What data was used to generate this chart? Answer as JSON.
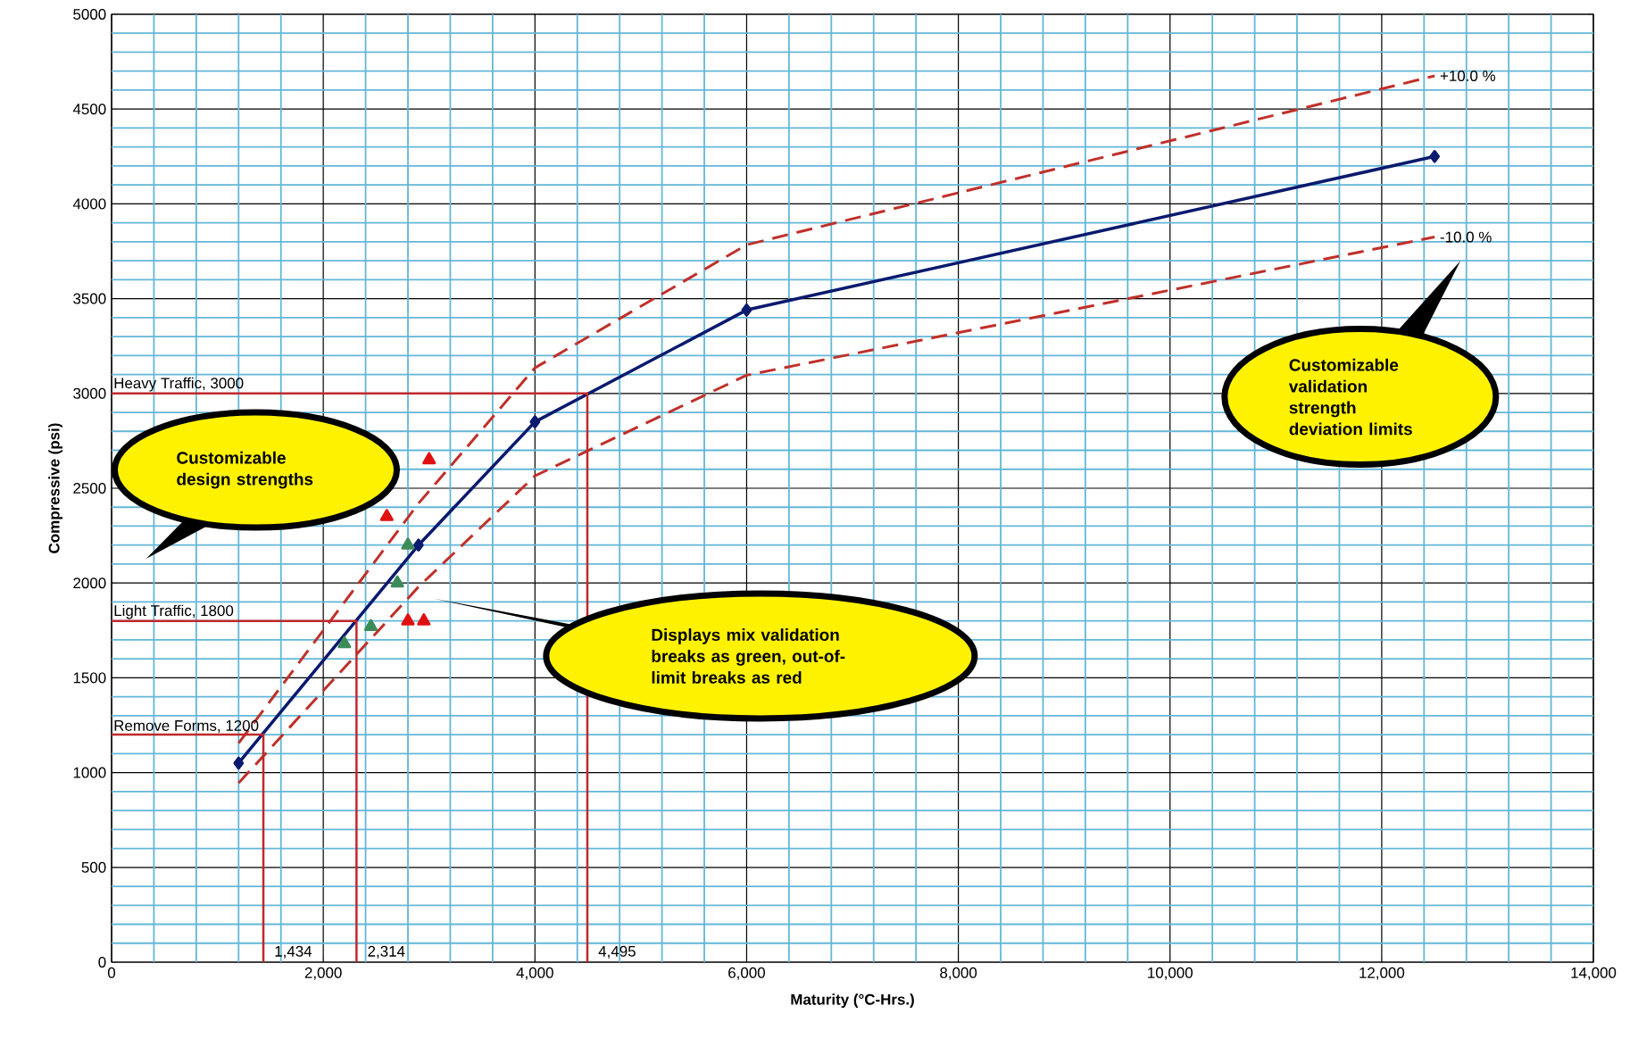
{
  "chart_data": {
    "type": "line",
    "xlabel": "Maturity (°C-Hrs.)",
    "ylabel": "Compressive (psi)",
    "xlim": [
      0,
      14000
    ],
    "ylim": [
      0,
      5000
    ],
    "xticks": [
      0,
      {
        "value": 400,
        "label": null
      },
      {
        "value": 800,
        "label": null
      },
      {
        "value": 1200,
        "label": null
      },
      {
        "value": 1600,
        "label": null
      },
      {
        "value": 2000,
        "label": "2,000"
      },
      {
        "value": 2400,
        "label": null
      },
      {
        "value": 2800,
        "label": null
      },
      {
        "value": 3200,
        "label": null
      },
      {
        "value": 3600,
        "label": null
      },
      {
        "value": 4000,
        "label": "4,000"
      },
      {
        "value": 4400,
        "label": null
      },
      {
        "value": 4800,
        "label": null
      },
      {
        "value": 5200,
        "label": null
      },
      {
        "value": 5600,
        "label": null
      },
      {
        "value": 6000,
        "label": "6,000"
      },
      {
        "value": 6400,
        "label": null
      },
      {
        "value": 6800,
        "label": null
      },
      {
        "value": 7200,
        "label": null
      },
      {
        "value": 7600,
        "label": null
      },
      {
        "value": 8000,
        "label": "8,000"
      },
      {
        "value": 8400,
        "label": null
      },
      {
        "value": 8800,
        "label": null
      },
      {
        "value": 9200,
        "label": null
      },
      {
        "value": 9600,
        "label": null
      },
      {
        "value": 10000,
        "label": "10,000"
      },
      {
        "value": 10400,
        "label": null
      },
      {
        "value": 10800,
        "label": null
      },
      {
        "value": 11200,
        "label": null
      },
      {
        "value": 11600,
        "label": null
      },
      {
        "value": 12000,
        "label": "12,000"
      },
      {
        "value": 12400,
        "label": null
      },
      {
        "value": 12800,
        "label": null
      },
      {
        "value": 13200,
        "label": null
      },
      {
        "value": 13600,
        "label": null
      },
      {
        "value": 14000,
        "label": "14,000"
      }
    ],
    "yticks": [
      0,
      {
        "value": 100,
        "label": null
      },
      {
        "value": 200,
        "label": null
      },
      {
        "value": 300,
        "label": null
      },
      {
        "value": 400,
        "label": null
      },
      500,
      {
        "value": 600,
        "label": null
      },
      {
        "value": 700,
        "label": null
      },
      {
        "value": 800,
        "label": null
      },
      {
        "value": 900,
        "label": null
      },
      1000,
      {
        "value": 1100,
        "label": null
      },
      {
        "value": 1200,
        "label": null
      },
      {
        "value": 1300,
        "label": null
      },
      {
        "value": 1400,
        "label": null
      },
      1500,
      {
        "value": 1600,
        "label": null
      },
      {
        "value": 1700,
        "label": null
      },
      {
        "value": 1800,
        "label": null
      },
      {
        "value": 1900,
        "label": null
      },
      2000,
      {
        "value": 2100,
        "label": null
      },
      {
        "value": 2200,
        "label": null
      },
      {
        "value": 2300,
        "label": null
      },
      {
        "value": 2400,
        "label": null
      },
      2500,
      {
        "value": 2600,
        "label": null
      },
      {
        "value": 2700,
        "label": null
      },
      {
        "value": 2800,
        "label": null
      },
      {
        "value": 2900,
        "label": null
      },
      3000,
      {
        "value": 3100,
        "label": null
      },
      {
        "value": 3200,
        "label": null
      },
      {
        "value": 3300,
        "label": null
      },
      {
        "value": 3400,
        "label": null
      },
      3500,
      {
        "value": 3600,
        "label": null
      },
      {
        "value": 3700,
        "label": null
      },
      {
        "value": 3800,
        "label": null
      },
      {
        "value": 3900,
        "label": null
      },
      4000,
      {
        "value": 4100,
        "label": null
      },
      {
        "value": 4200,
        "label": null
      },
      {
        "value": 4300,
        "label": null
      },
      {
        "value": 4400,
        "label": null
      },
      4500,
      {
        "value": 4600,
        "label": null
      },
      {
        "value": 4700,
        "label": null
      },
      {
        "value": 4800,
        "label": null
      },
      {
        "value": 4900,
        "label": null
      },
      5000
    ],
    "grid": true,
    "series": [
      {
        "color": "#0a1a6e",
        "marker": "diamond",
        "x": [
          1200,
          2900,
          4000,
          6000,
          12500
        ],
        "values": [
          1050,
          2200,
          2850,
          3440,
          4250
        ]
      },
      {
        "name": "+10.0 %",
        "color": "#c0302a",
        "line_style": "dashed",
        "marker": "none",
        "x": [
          1200,
          2900,
          4000,
          6000,
          12500
        ],
        "values": [
          1155,
          2420,
          3135,
          3784,
          4675
        ]
      },
      {
        "name": "-10.0 %",
        "color": "#c0302a",
        "line_style": "dashed",
        "marker": "none",
        "x": [
          1200,
          2900,
          4000,
          6000,
          12500
        ],
        "values": [
          945,
          1980,
          2565,
          3096,
          3825
        ]
      },
      {
        "type": "scatter",
        "color": "#3c8c5a",
        "marker": "triangle",
        "x": [
          2200,
          2450,
          2700,
          2800
        ],
        "values": [
          1680,
          1770,
          2000,
          2200
        ]
      },
      {
        "type": "scatter",
        "color": "#e01010",
        "marker": "triangle",
        "x": [
          2600,
          3000,
          2800,
          2950
        ],
        "values": [
          2350,
          2650,
          1800,
          1800
        ]
      },
      {
        "color": "#c0282d",
        "marker": "none",
        "x": [
          0,
          4495,
          4495
        ],
        "values": [
          3000,
          3000,
          0
        ]
      },
      {
        "color": "#c0282d",
        "marker": "none",
        "x": [
          0,
          2314,
          2314
        ],
        "values": [
          1800,
          1800,
          0
        ]
      },
      {
        "color": "#c0282d",
        "marker": "none",
        "x": [
          0,
          1434,
          1434
        ],
        "values": [
          1200,
          1200,
          0
        ]
      }
    ],
    "annotations": [
      {
        "text": "Heavy Traffic, 3000",
        "x": 0,
        "y": 3000
      },
      {
        "text": "Light Traffic, 1800",
        "x": 0,
        "y": 1800
      },
      {
        "text": "Remove Forms, 1200",
        "x": 0,
        "y": 1200
      },
      {
        "text": "1,434",
        "x": 1434,
        "y": 0
      },
      {
        "text": "2,314",
        "x": 2314,
        "y": 0
      },
      {
        "text": "4,495",
        "x": 4495,
        "y": 0
      },
      "Customizable design strengths",
      "Displays mix validation breaks as green, out-of-limit breaks as red",
      "Customizable validation strength deviation limits"
    ]
  }
}
